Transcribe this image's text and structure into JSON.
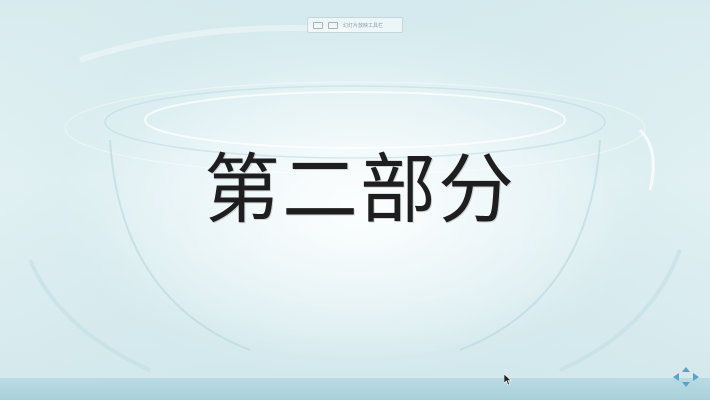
{
  "slide": {
    "title": "第二部分"
  },
  "toolbar": {
    "text": "幻灯片放映工具栏"
  },
  "colors": {
    "background": "#d7ebee",
    "title": "#1e1e1e",
    "bottom_bar": "#b9dbe3",
    "nav_arrows": "#5aa3c8"
  },
  "icons": {
    "cursor": "mouse-pointer-icon",
    "nav": "navigation-arrows-icon"
  }
}
